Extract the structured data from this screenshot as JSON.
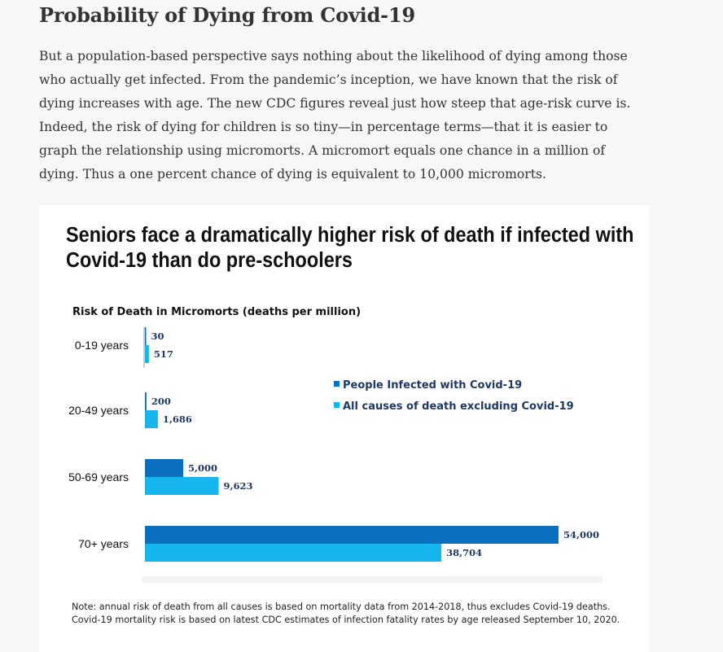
{
  "article": {
    "heading": "Probability of Dying from Covid-19",
    "paragraph": "But a population-based perspective says nothing about the likelihood of dying among those who actually get infected. From the pandemic’s inception, we have known that the risk of dying increases with age. The new CDC figures reveal just how steep that age-risk curve is. Indeed, the risk of dying for children is so tiny—in percentage terms—that it is easier to graph the relationship using micromorts. A micromort equals one chance in a million of dying. Thus a one percent chance of dying is equivalent to 10,000 micromorts."
  },
  "chart_data": {
    "type": "bar",
    "orientation": "horizontal",
    "title": "Seniors face a dramatically higher risk of death if infected with Covid-19 than do pre-schoolers",
    "subtitle": "Risk of Death in Micromorts (deaths per million)",
    "xlabel": "",
    "ylabel": "",
    "categories": [
      "0-19 years",
      "20-49 years",
      "50-69 years",
      "70+ years"
    ],
    "series": [
      {
        "name": "People Infected with Covid-19",
        "color": "#0b6fbf",
        "values": [
          30,
          200,
          5000,
          54000
        ],
        "labels": [
          "30",
          "200",
          "5,000",
          "54,000"
        ]
      },
      {
        "name": "All causes of death excluding Covid-19",
        "color": "#17b5ee",
        "values": [
          517,
          1686,
          9623,
          38704
        ],
        "labels": [
          "517",
          "1,686",
          "9,623",
          "38,704"
        ]
      }
    ],
    "xlim": [
      0,
      54000
    ],
    "grid": false,
    "legend_position": "right-middle",
    "note": "Note: annual risk of death from all causes is based on mortality data from 2014-2018, thus excludes Covid-19 deaths. Covid-19 mortality risk is based on latest CDC estimates of infection fatality rates by age released September 10, 2020."
  }
}
